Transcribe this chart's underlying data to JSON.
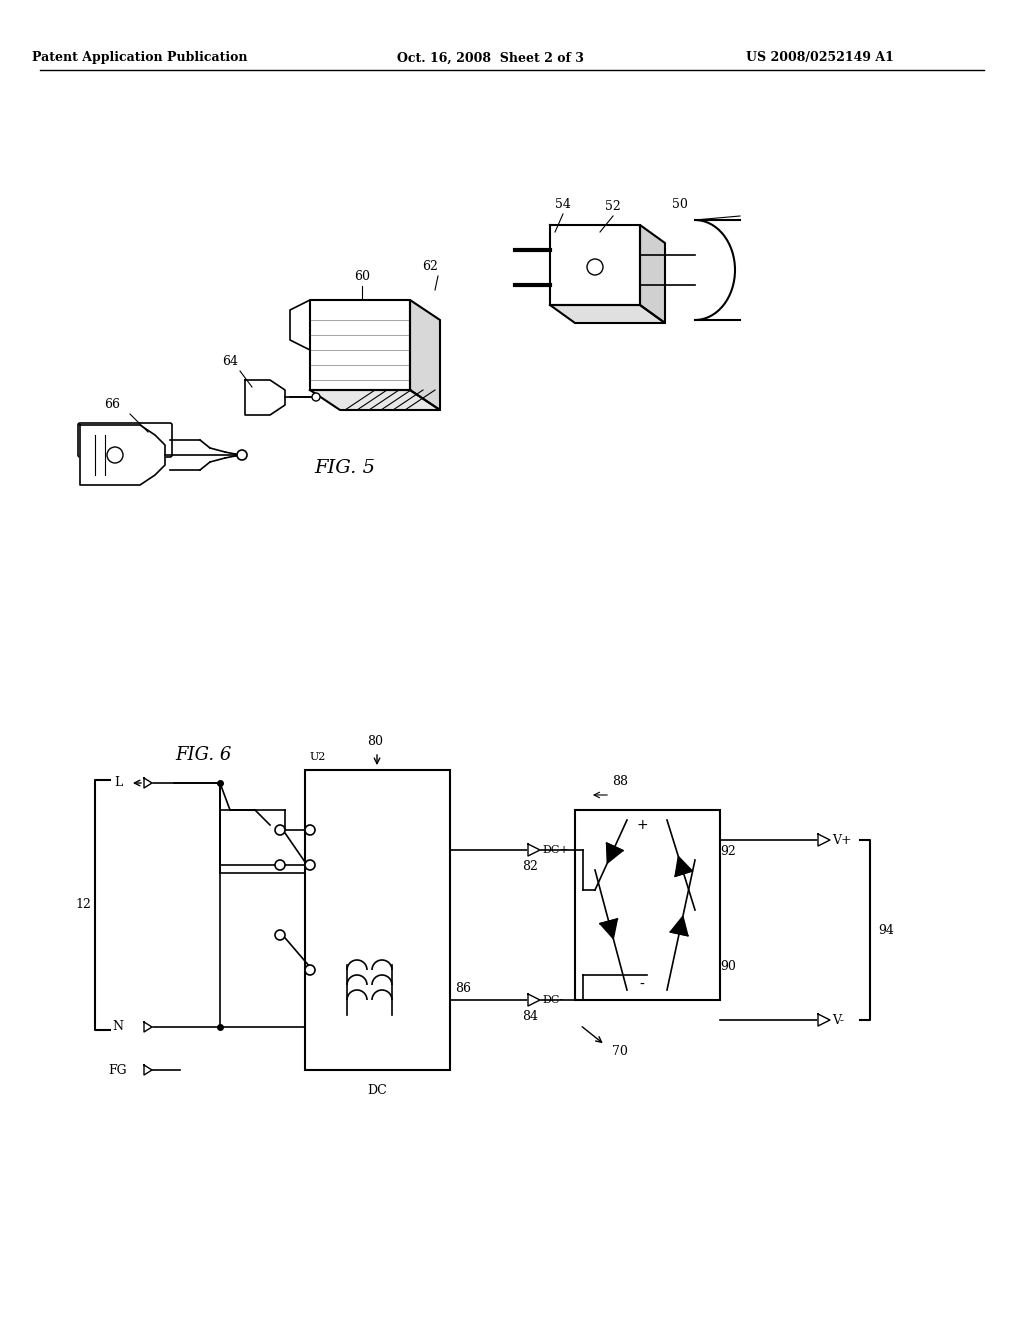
{
  "header_left": "Patent Application Publication",
  "header_mid": "Oct. 16, 2008  Sheet 2 of 3",
  "header_right": "US 2008/0252149 A1",
  "fig5_label": "FIG. 5",
  "fig6_label": "FIG. 6",
  "bg_color": "#ffffff",
  "line_color": "#000000",
  "label_color": "#000000"
}
